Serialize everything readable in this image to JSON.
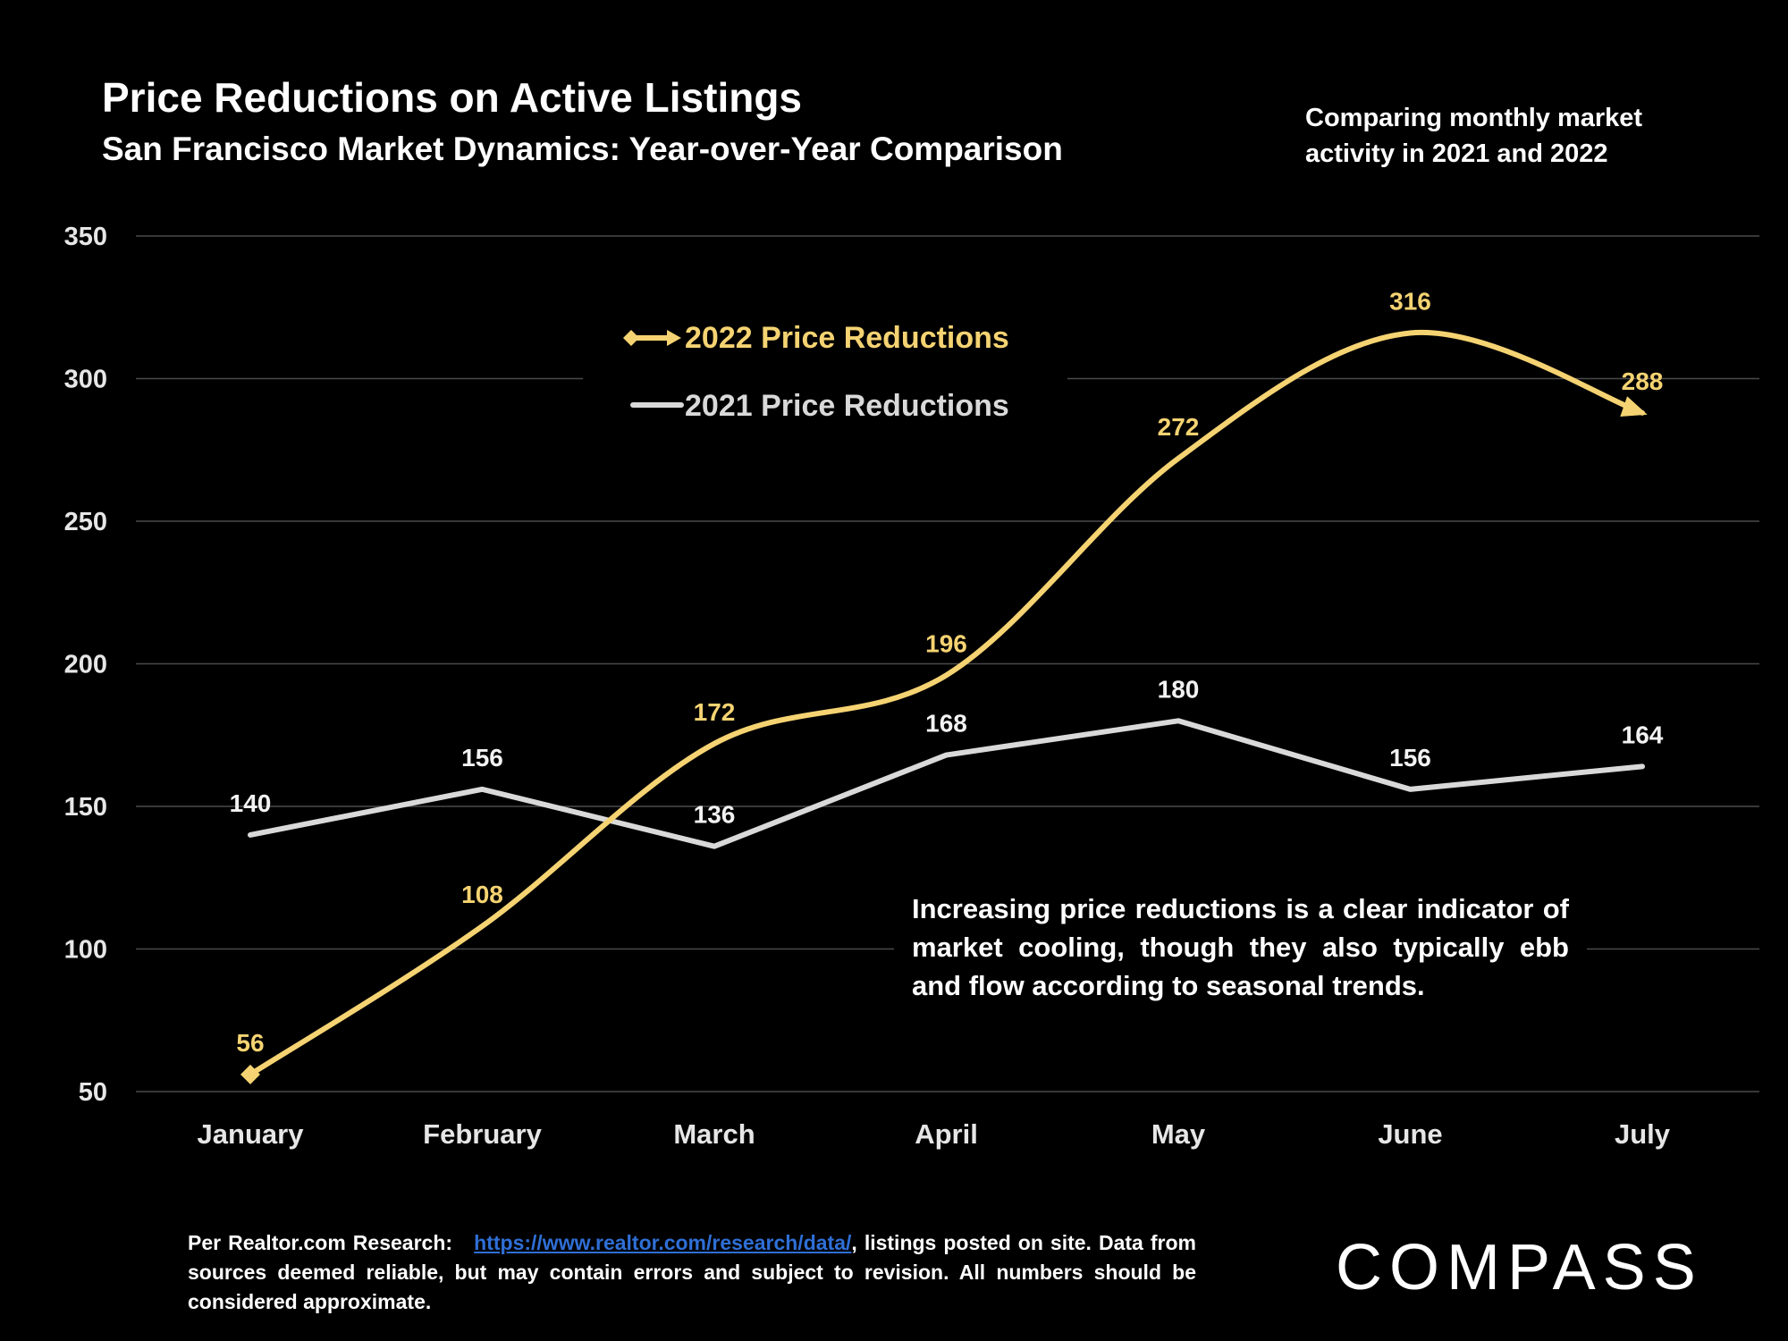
{
  "header": {
    "title": "Price Reductions on Active Listings",
    "subtitle": "San Francisco Market Dynamics: Year-over-Year Comparison",
    "comparing_note": "Comparing monthly market activity in 2021 and 2022"
  },
  "annotation": "Increasing price reductions is a clear indicator of market cooling, though they also typically ebb and flow according to seasonal trends.",
  "footer": {
    "prefix": "Per Realtor.com Research:",
    "link": "https://www.realtor.com/research/data/",
    "after_link": ", listings posted on site.",
    "disclaimer": "Data from sources deemed reliable, but may contain errors and subject to revision. All numbers should be considered approximate."
  },
  "logo": {
    "text": "COMPASS"
  },
  "colors": {
    "series_2022": "#f5d372",
    "series_2021": "#d9d9d9",
    "background": "#000000",
    "grid": "#4a4a4a",
    "link": "#2f6fd6"
  },
  "chart_data": {
    "type": "line",
    "title": "Price Reductions on Active Listings",
    "subtitle": "San Francisco Market Dynamics: Year-over-Year Comparison",
    "categories": [
      "January",
      "February",
      "March",
      "April",
      "May",
      "June",
      "July"
    ],
    "series": [
      {
        "name": "2022 Price Reductions",
        "values": [
          56,
          108,
          172,
          196,
          272,
          316,
          288
        ],
        "color": "#f5d372",
        "smooth": true,
        "markers": "diamond-start, arrow-end"
      },
      {
        "name": "2021 Price Reductions",
        "values": [
          140,
          156,
          136,
          168,
          180,
          156,
          164
        ],
        "color": "#d9d9d9",
        "smooth": false
      }
    ],
    "ylim": [
      50,
      350
    ],
    "yticks": [
      50,
      100,
      150,
      200,
      250,
      300,
      350
    ],
    "grid": true,
    "legend": "top-center",
    "data_labels": true
  }
}
